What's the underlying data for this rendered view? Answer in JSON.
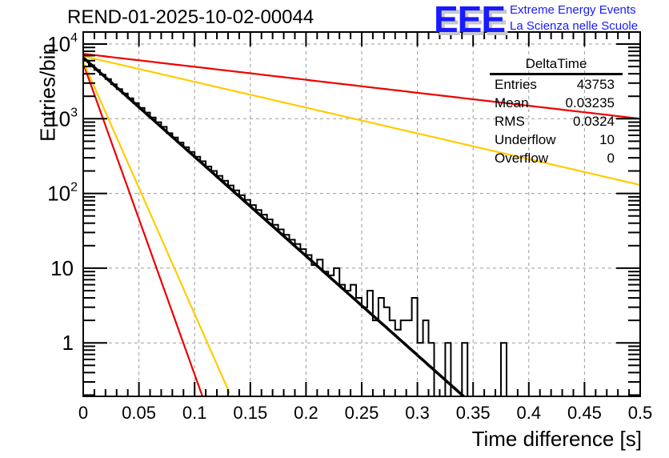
{
  "header": {
    "title": "REND-01-2025-10-02-00044",
    "logo_text": "EEE",
    "logo_line1": "Extreme Energy Events",
    "logo_line2": "La Scienza nelle Scuole"
  },
  "stats_box": {
    "name": "DeltaTime",
    "rows": [
      {
        "label": "Entries",
        "value": "43753"
      },
      {
        "label": "Mean",
        "value": "0.03235"
      },
      {
        "label": "RMS",
        "value": "0.0324"
      },
      {
        "label": "Underflow",
        "value": "10"
      },
      {
        "label": "Overflow",
        "value": "0"
      }
    ]
  },
  "chart_data": {
    "type": "bar",
    "subtype": "histogram-step",
    "title": "REND-01-2025-10-02-00044",
    "xlabel": "Time difference [s]",
    "ylabel": "Entries/bin",
    "xlim": [
      0,
      0.5
    ],
    "ylim": [
      0.186,
      10000
    ],
    "yscale": "log",
    "grid": true,
    "x_ticks": [
      "0",
      "0.05",
      "0.1",
      "0.15",
      "0.2",
      "0.25",
      "0.3",
      "0.35",
      "0.4",
      "0.45",
      "0.5"
    ],
    "x_tick_values": [
      0,
      0.05,
      0.1,
      0.15,
      0.2,
      0.25,
      0.3,
      0.35,
      0.4,
      0.45,
      0.5
    ],
    "y_ticks": [
      "1",
      "10",
      "10^2",
      "10^3",
      "10^4"
    ],
    "y_tick_values": [
      1,
      10,
      100,
      1000,
      10000
    ],
    "bin_width": 0.005,
    "histogram": {
      "name": "DeltaTime",
      "color": "#000000",
      "values": [
        6000,
        5200,
        4500,
        3900,
        3400,
        2900,
        2500,
        2180,
        1880,
        1620,
        1400,
        1210,
        1040,
        900,
        780,
        640,
        560,
        480,
        415,
        360,
        310,
        270,
        230,
        200,
        172,
        148,
        128,
        110,
        95,
        82,
        70,
        60,
        52,
        45,
        38,
        33,
        28,
        24,
        21,
        18,
        15,
        11,
        13,
        9,
        8,
        10,
        6,
        5,
        6,
        4,
        3,
        5,
        2,
        4,
        3,
        2,
        1.5,
        2,
        2,
        4,
        1,
        2,
        1,
        0,
        0,
        1,
        0,
        0,
        1,
        0,
        0,
        0,
        0,
        0,
        0,
        1,
        0,
        0,
        0,
        0,
        0,
        0,
        0,
        0,
        0,
        0,
        0,
        0,
        0,
        0,
        0,
        0,
        0,
        0,
        0,
        0,
        0,
        0,
        0,
        0
      ]
    },
    "series": [
      {
        "name": "fit",
        "color": "#000000",
        "type": "exp",
        "A": 6600,
        "tau": 0.0327,
        "x_range": [
          0,
          0.342
        ]
      },
      {
        "name": "red-steep",
        "color": "#ee0000",
        "type": "exp",
        "A": 5500,
        "tau": 0.01043,
        "x_range": [
          0,
          0.107
        ]
      },
      {
        "name": "yellow-steep",
        "color": "#ffcc00",
        "type": "exp",
        "A": 5800,
        "tau": 0.01286,
        "x_range": [
          0,
          0.1315
        ]
      },
      {
        "name": "red-shallow",
        "color": "#ee0000",
        "type": "exp",
        "A": 7400,
        "tau": 0.2498,
        "x_range": [
          0,
          0.5
        ]
      },
      {
        "name": "yellow-shallow",
        "color": "#ffcc00",
        "type": "exp",
        "A": 6900,
        "tau": 0.1259,
        "x_range": [
          0,
          0.5
        ]
      }
    ],
    "legend": "top-right stats box"
  }
}
